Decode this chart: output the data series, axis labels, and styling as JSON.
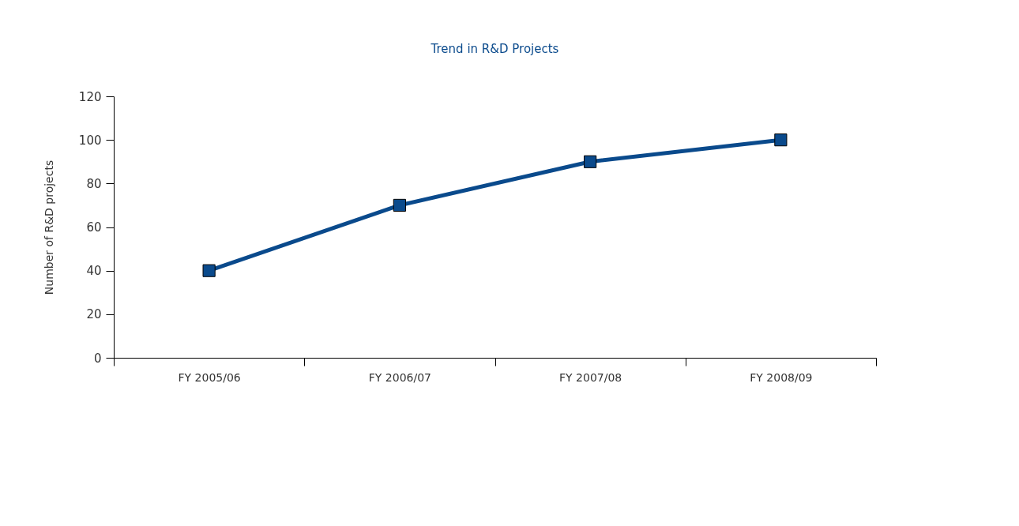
{
  "chart_data": {
    "type": "line",
    "title": "Trend in R&D Projects",
    "ylabel": "Number of R&D projects",
    "categories": [
      "FY 2005/06",
      "FY 2006/07",
      "FY 2007/08",
      "FY 2008/09"
    ],
    "series": [
      {
        "color": "#0a4a8c",
        "values": [
          40,
          70,
          90,
          100
        ]
      }
    ],
    "ylim": [
      0,
      120
    ],
    "yticks": [
      0,
      20,
      40,
      60,
      80,
      100,
      120
    ],
    "marker": "square",
    "line_style": "solid",
    "grid": false,
    "legend": false
  }
}
